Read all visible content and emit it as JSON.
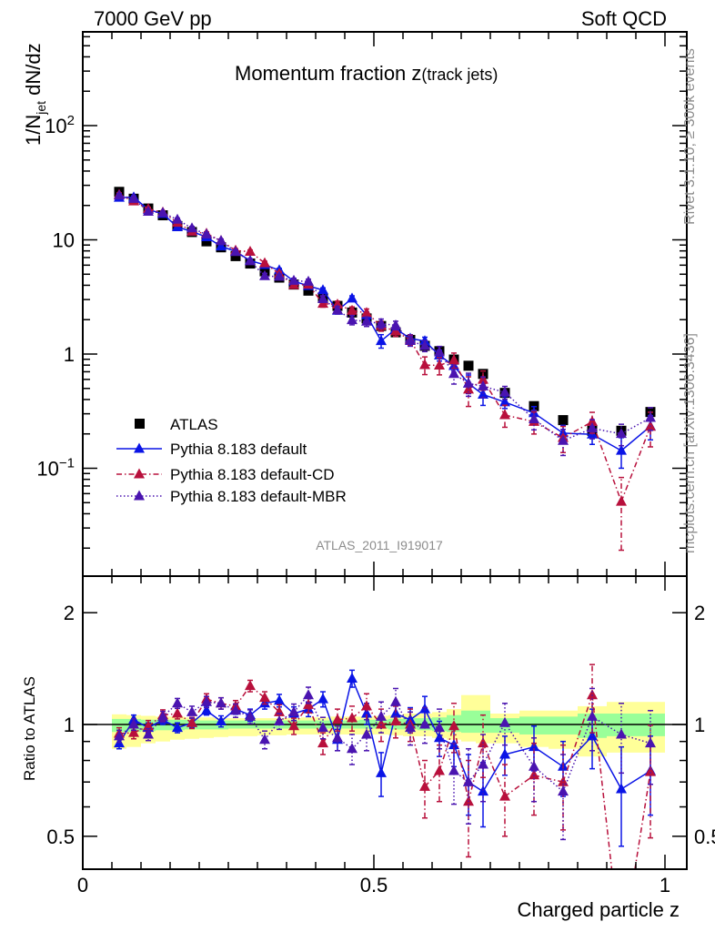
{
  "header": {
    "left": "7000 GeV pp",
    "right": "Soft QCD"
  },
  "side_text": {
    "rivet": "Rivet 3.1.10, ≥ 300k events",
    "mcplots": "mcplots.cern.ch [arXiv:1306.3436]"
  },
  "watermark": "ATLAS_2011_I919017",
  "colors": {
    "atlas": "#000000",
    "default": "#0a14e6",
    "cd": "#b8103c",
    "mbr": "#4a14b0",
    "band_total": "#ffff99",
    "band_stat": "#99ff99"
  },
  "chart_data": {
    "type": "scatter",
    "title": "Momentum fraction z",
    "title_suffix": "(track jets)",
    "ylabel_main": {
      "pre": "1/N",
      "sub": "jet",
      "post": " dN/dz"
    },
    "ylabel_ratio": "Ratio to ATLAS",
    "xlabel": "Charged particle z",
    "xlim": [
      0,
      1.0375
    ],
    "ylim_main": [
      0.0112,
      650
    ],
    "ylim_ratio": [
      0.41,
      2.5
    ],
    "yscale": "log",
    "legend_position": "lower-left",
    "x_ticks": [
      {
        "v": 0,
        "label": "0"
      },
      {
        "v": 0.5,
        "label": "0.5"
      },
      {
        "v": 1,
        "label": "1"
      }
    ],
    "y_ticks_main": [
      {
        "v": 100,
        "base": "10",
        "exp": "2"
      },
      {
        "v": 10,
        "base": "10",
        "exp": ""
      },
      {
        "v": 1,
        "base": "1",
        "exp": ""
      },
      {
        "v": 0.1,
        "base": "10",
        "exp": "−1"
      }
    ],
    "y_ticks_ratio": [
      {
        "v": 2,
        "label": "2"
      },
      {
        "v": 1,
        "label": "1"
      },
      {
        "v": 0.5,
        "label": "0.5"
      }
    ],
    "x": [
      0.0625,
      0.0875,
      0.1125,
      0.1375,
      0.1625,
      0.1875,
      0.2125,
      0.2375,
      0.2625,
      0.2875,
      0.3125,
      0.3375,
      0.3625,
      0.3875,
      0.4125,
      0.4375,
      0.4625,
      0.4875,
      0.5125,
      0.5375,
      0.5625,
      0.5875,
      0.6125,
      0.6375,
      0.6625,
      0.6875,
      0.725,
      0.775,
      0.825,
      0.875,
      0.925,
      0.975
    ],
    "x_halfwidth": [
      0.0125,
      0.0125,
      0.0125,
      0.0125,
      0.0125,
      0.0125,
      0.0125,
      0.0125,
      0.0125,
      0.0125,
      0.0125,
      0.0125,
      0.0125,
      0.0125,
      0.0125,
      0.0125,
      0.0125,
      0.0125,
      0.0125,
      0.0125,
      0.0125,
      0.0125,
      0.0125,
      0.0125,
      0.0125,
      0.0125,
      0.025,
      0.025,
      0.025,
      0.025,
      0.025,
      0.025
    ],
    "reference": {
      "name": "ATLAS",
      "values": [
        26.3,
        22.9,
        18.8,
        16.4,
        13.2,
        11.7,
        9.7,
        8.6,
        7.2,
        6.2,
        5.3,
        4.67,
        4.06,
        3.59,
        3.1,
        2.64,
        2.31,
        2.05,
        1.76,
        1.55,
        1.33,
        1.18,
        1.06,
        0.895,
        0.79,
        0.67,
        0.457,
        0.35,
        0.264,
        0.213,
        0.213,
        0.311
      ],
      "band_total_lo": [
        0.86,
        0.87,
        0.89,
        0.9,
        0.91,
        0.915,
        0.92,
        0.925,
        0.93,
        0.93,
        0.935,
        0.935,
        0.94,
        0.94,
        0.94,
        0.94,
        0.94,
        0.94,
        0.94,
        0.935,
        0.93,
        0.93,
        0.92,
        0.91,
        0.9,
        0.89,
        0.89,
        0.87,
        0.86,
        0.82,
        0.84,
        0.84
      ],
      "band_total_hi": [
        1.065,
        1.06,
        1.055,
        1.05,
        1.05,
        1.045,
        1.045,
        1.04,
        1.04,
        1.04,
        1.04,
        1.04,
        1.04,
        1.045,
        1.045,
        1.05,
        1.05,
        1.05,
        1.055,
        1.06,
        1.07,
        1.07,
        1.08,
        1.1,
        1.2,
        1.2,
        1.07,
        1.09,
        1.09,
        1.12,
        1.15,
        1.15
      ],
      "band_stat_lo": [
        0.955,
        0.955,
        0.96,
        0.965,
        0.965,
        0.97,
        0.97,
        0.97,
        0.975,
        0.975,
        0.975,
        0.975,
        0.975,
        0.975,
        0.975,
        0.975,
        0.975,
        0.975,
        0.975,
        0.97,
        0.97,
        0.965,
        0.96,
        0.955,
        0.95,
        0.95,
        0.95,
        0.94,
        0.94,
        0.92,
        0.93,
        0.93
      ],
      "band_stat_hi": [
        1.035,
        1.035,
        1.03,
        1.03,
        1.03,
        1.03,
        1.025,
        1.025,
        1.025,
        1.025,
        1.025,
        1.025,
        1.025,
        1.025,
        1.025,
        1.025,
        1.025,
        1.03,
        1.03,
        1.035,
        1.04,
        1.04,
        1.045,
        1.06,
        1.09,
        1.09,
        1.04,
        1.05,
        1.05,
        1.07,
        1.07,
        1.07
      ]
    },
    "series": [
      {
        "key": "default",
        "name": "Pythia 8.183 default",
        "style": "solid",
        "ratio": [
          0.89,
          1.03,
          0.98,
          1.03,
          0.98,
          1.01,
          1.09,
          1.02,
          1.1,
          1.06,
          1.14,
          1.16,
          1.07,
          1.1,
          1.17,
          0.91,
          1.33,
          1.07,
          0.74,
          1.07,
          1.03,
          1.1,
          0.92,
          0.88,
          0.7,
          0.66,
          0.83,
          0.87,
          0.77,
          0.93,
          0.67,
          0.75
        ],
        "ratio_err": [
          0.03,
          0.03,
          0.03,
          0.03,
          0.03,
          0.03,
          0.03,
          0.035,
          0.035,
          0.04,
          0.04,
          0.045,
          0.045,
          0.05,
          0.055,
          0.06,
          0.07,
          0.07,
          0.1,
          0.07,
          0.08,
          0.09,
          0.1,
          0.11,
          0.13,
          0.13,
          0.1,
          0.12,
          0.13,
          0.17,
          0.2,
          0.18
        ]
      },
      {
        "key": "cd",
        "name": "Pythia 8.183 default-CD",
        "style": "dashdot",
        "ratio": [
          0.945,
          0.95,
          0.99,
          1.06,
          1.07,
          1.01,
          1.17,
          1.14,
          1.12,
          1.27,
          1.18,
          1.08,
          0.99,
          1.13,
          0.89,
          1.03,
          1.04,
          1.12,
          1.0,
          1.02,
          1.0,
          0.68,
          0.75,
          0.99,
          0.62,
          0.89,
          0.64,
          0.73,
          0.7,
          1.2,
          0.24,
          0.745
        ],
        "ratio_err": [
          0.035,
          0.035,
          0.035,
          0.035,
          0.035,
          0.035,
          0.04,
          0.04,
          0.04,
          0.045,
          0.045,
          0.05,
          0.05,
          0.055,
          0.06,
          0.07,
          0.08,
          0.09,
          0.1,
          0.1,
          0.1,
          0.12,
          0.13,
          0.15,
          0.18,
          0.17,
          0.14,
          0.16,
          0.18,
          0.25,
          0.15,
          0.25
        ]
      },
      {
        "key": "mbr",
        "name": "Pythia 8.183 default-MBR",
        "style": "dotted",
        "ratio": [
          0.93,
          1.0,
          0.94,
          1.05,
          1.14,
          1.08,
          1.15,
          1.14,
          1.09,
          1.05,
          0.91,
          1.02,
          1.08,
          1.2,
          0.98,
          0.92,
          0.86,
          0.94,
          1.05,
          1.15,
          0.98,
          1.0,
          0.98,
          0.75,
          0.7,
          0.78,
          1.01,
          0.77,
          0.66,
          1.05,
          0.94,
          0.89
        ],
        "ratio_err": [
          0.035,
          0.035,
          0.035,
          0.035,
          0.035,
          0.04,
          0.04,
          0.04,
          0.045,
          0.045,
          0.05,
          0.05,
          0.055,
          0.06,
          0.065,
          0.07,
          0.08,
          0.09,
          0.1,
          0.1,
          0.1,
          0.11,
          0.12,
          0.14,
          0.16,
          0.16,
          0.13,
          0.15,
          0.17,
          0.2,
          0.2,
          0.2
        ]
      }
    ]
  }
}
